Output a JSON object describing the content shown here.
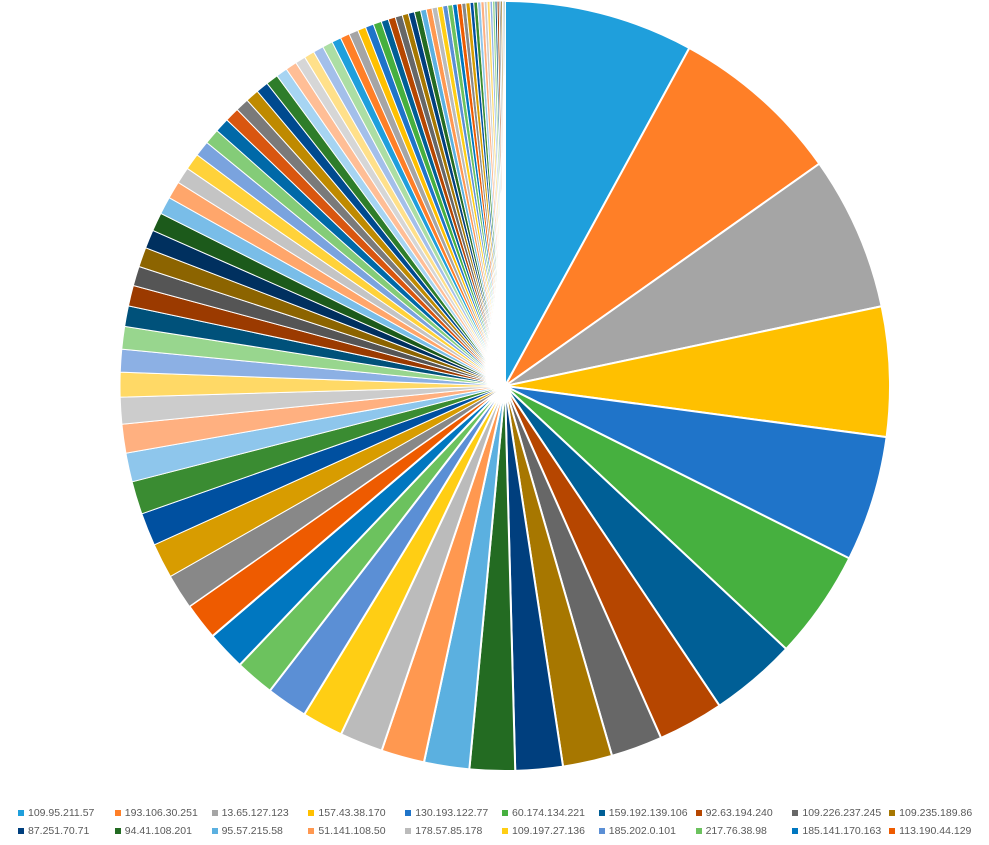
{
  "chart_data": {
    "type": "pie",
    "slices": [
      {
        "label": "109.95.211.57",
        "value": 9.2,
        "color": "#1F9FDC"
      },
      {
        "label": "193.106.30.251",
        "value": 8.4,
        "color": "#FF7F27"
      },
      {
        "label": "13.65.127.123",
        "value": 7.5,
        "color": "#A5A5A5"
      },
      {
        "label": "157.43.38.170",
        "value": 6.3,
        "color": "#FFC000"
      },
      {
        "label": "130.193.122.77",
        "value": 6.1,
        "color": "#1F74C9"
      },
      {
        "label": "60.174.134.221",
        "value": 5.3,
        "color": "#46B03F"
      },
      {
        "label": "159.192.139.106",
        "value": 4.2,
        "color": "#005F96"
      },
      {
        "label": "92.63.194.240",
        "value": 3.2,
        "color": "#B64600"
      },
      {
        "label": "109.226.237.245",
        "value": 2.5,
        "color": "#676767"
      },
      {
        "label": "109.235.189.86",
        "value": 2.4,
        "color": "#A77700"
      },
      {
        "label": "87.251.70.71",
        "value": 2.3,
        "color": "#003F7E"
      },
      {
        "label": "94.41.108.201",
        "value": 2.2,
        "color": "#236B22"
      },
      {
        "label": "95.57.215.58",
        "value": 2.2,
        "color": "#5BB0E0"
      },
      {
        "label": "51.141.108.50",
        "value": 2.1,
        "color": "#FF9850"
      },
      {
        "label": "178.57.85.178",
        "value": 2.1,
        "color": "#BBBBBB"
      },
      {
        "label": "109.197.27.136",
        "value": 2.0,
        "color": "#FFCE14"
      },
      {
        "label": "185.202.0.101",
        "value": 2.0,
        "color": "#5B8FD5"
      },
      {
        "label": "217.76.38.98",
        "value": 1.9,
        "color": "#6CC25E"
      },
      {
        "label": "185.141.170.163",
        "value": 1.9,
        "color": "#0077C0"
      },
      {
        "label": "113.190.44.129",
        "value": 1.8,
        "color": "#EE5B00"
      },
      {
        "label": "",
        "value": 1.7,
        "color": "#888888"
      },
      {
        "label": "",
        "value": 1.7,
        "color": "#D89C00"
      },
      {
        "label": "",
        "value": 1.6,
        "color": "#0050A0"
      },
      {
        "label": "",
        "value": 1.6,
        "color": "#3A8C32"
      },
      {
        "label": "",
        "value": 1.4,
        "color": "#8EC6EC"
      },
      {
        "label": "",
        "value": 1.4,
        "color": "#FFB080"
      },
      {
        "label": "",
        "value": 1.3,
        "color": "#CCCCCC"
      },
      {
        "label": "",
        "value": 1.2,
        "color": "#FFD966"
      },
      {
        "label": "",
        "value": 1.1,
        "color": "#8CB0E4"
      },
      {
        "label": "",
        "value": 1.1,
        "color": "#98D68E"
      },
      {
        "label": "",
        "value": 1.0,
        "color": "#00517A"
      },
      {
        "label": "",
        "value": 1.0,
        "color": "#9B3A00"
      },
      {
        "label": "",
        "value": 0.95,
        "color": "#555555"
      },
      {
        "label": "",
        "value": 0.95,
        "color": "#8C6400"
      },
      {
        "label": "",
        "value": 0.9,
        "color": "#00305F"
      },
      {
        "label": "",
        "value": 0.9,
        "color": "#1C5A1B"
      },
      {
        "label": "",
        "value": 0.85,
        "color": "#79BDE8"
      },
      {
        "label": "",
        "value": 0.85,
        "color": "#FFA66B"
      },
      {
        "label": "",
        "value": 0.8,
        "color": "#C4C4C4"
      },
      {
        "label": "",
        "value": 0.8,
        "color": "#FFD23A"
      },
      {
        "label": "",
        "value": 0.75,
        "color": "#7AA3DE"
      },
      {
        "label": "",
        "value": 0.75,
        "color": "#84CC78"
      },
      {
        "label": "",
        "value": 0.7,
        "color": "#0069A8"
      },
      {
        "label": "",
        "value": 0.7,
        "color": "#D9560F"
      },
      {
        "label": "",
        "value": 0.65,
        "color": "#7A7A7A"
      },
      {
        "label": "",
        "value": 0.65,
        "color": "#BF8A00"
      },
      {
        "label": "",
        "value": 0.6,
        "color": "#004A8F"
      },
      {
        "label": "",
        "value": 0.6,
        "color": "#2E7D2A"
      },
      {
        "label": "",
        "value": 0.55,
        "color": "#A6D4F2"
      },
      {
        "label": "",
        "value": 0.55,
        "color": "#FFBE96"
      },
      {
        "label": "",
        "value": 0.5,
        "color": "#D6D6D6"
      },
      {
        "label": "",
        "value": 0.5,
        "color": "#FFE08A"
      },
      {
        "label": "",
        "value": 0.5,
        "color": "#A3BFEA"
      },
      {
        "label": "",
        "value": 0.5,
        "color": "#ACDEA4"
      },
      {
        "label": "",
        "value": 0.45,
        "color": "#1F9FDC"
      },
      {
        "label": "",
        "value": 0.45,
        "color": "#FF7F27"
      },
      {
        "label": "",
        "value": 0.45,
        "color": "#A5A5A5"
      },
      {
        "label": "",
        "value": 0.4,
        "color": "#FFC000"
      },
      {
        "label": "",
        "value": 0.4,
        "color": "#1F74C9"
      },
      {
        "label": "",
        "value": 0.4,
        "color": "#46B03F"
      },
      {
        "label": "",
        "value": 0.35,
        "color": "#005F96"
      },
      {
        "label": "",
        "value": 0.35,
        "color": "#B64600"
      },
      {
        "label": "",
        "value": 0.35,
        "color": "#676767"
      },
      {
        "label": "",
        "value": 0.3,
        "color": "#A77700"
      },
      {
        "label": "",
        "value": 0.3,
        "color": "#003F7E"
      },
      {
        "label": "",
        "value": 0.3,
        "color": "#236B22"
      },
      {
        "label": "",
        "value": 0.28,
        "color": "#5BB0E0"
      },
      {
        "label": "",
        "value": 0.28,
        "color": "#FF9850"
      },
      {
        "label": "",
        "value": 0.26,
        "color": "#BBBBBB"
      },
      {
        "label": "",
        "value": 0.26,
        "color": "#FFCE14"
      },
      {
        "label": "",
        "value": 0.24,
        "color": "#5B8FD5"
      },
      {
        "label": "",
        "value": 0.24,
        "color": "#6CC25E"
      },
      {
        "label": "",
        "value": 0.22,
        "color": "#0077C0"
      },
      {
        "label": "",
        "value": 0.22,
        "color": "#EE5B00"
      },
      {
        "label": "",
        "value": 0.2,
        "color": "#888888"
      },
      {
        "label": "",
        "value": 0.2,
        "color": "#D89C00"
      },
      {
        "label": "",
        "value": 0.18,
        "color": "#0050A0"
      },
      {
        "label": "",
        "value": 0.18,
        "color": "#3A8C32"
      },
      {
        "label": "",
        "value": 0.16,
        "color": "#8EC6EC"
      },
      {
        "label": "",
        "value": 0.16,
        "color": "#FFB080"
      },
      {
        "label": "",
        "value": 0.14,
        "color": "#CCCCCC"
      },
      {
        "label": "",
        "value": 0.14,
        "color": "#FFD966"
      },
      {
        "label": "",
        "value": 0.12,
        "color": "#8CB0E4"
      },
      {
        "label": "",
        "value": 0.12,
        "color": "#98D68E"
      },
      {
        "label": "",
        "value": 0.1,
        "color": "#00517A"
      },
      {
        "label": "",
        "value": 0.1,
        "color": "#9B3A00"
      },
      {
        "label": "",
        "value": 0.08,
        "color": "#555555"
      },
      {
        "label": "",
        "value": 0.08,
        "color": "#8C6400"
      },
      {
        "label": "",
        "value": 0.06,
        "color": "#00305F"
      },
      {
        "label": "",
        "value": 0.06,
        "color": "#1C5A1B"
      }
    ],
    "title": "",
    "legend_position": "bottom",
    "start_angle_deg": 0,
    "direction": "clockwise",
    "slice_border_color": "#FFFFFF"
  }
}
